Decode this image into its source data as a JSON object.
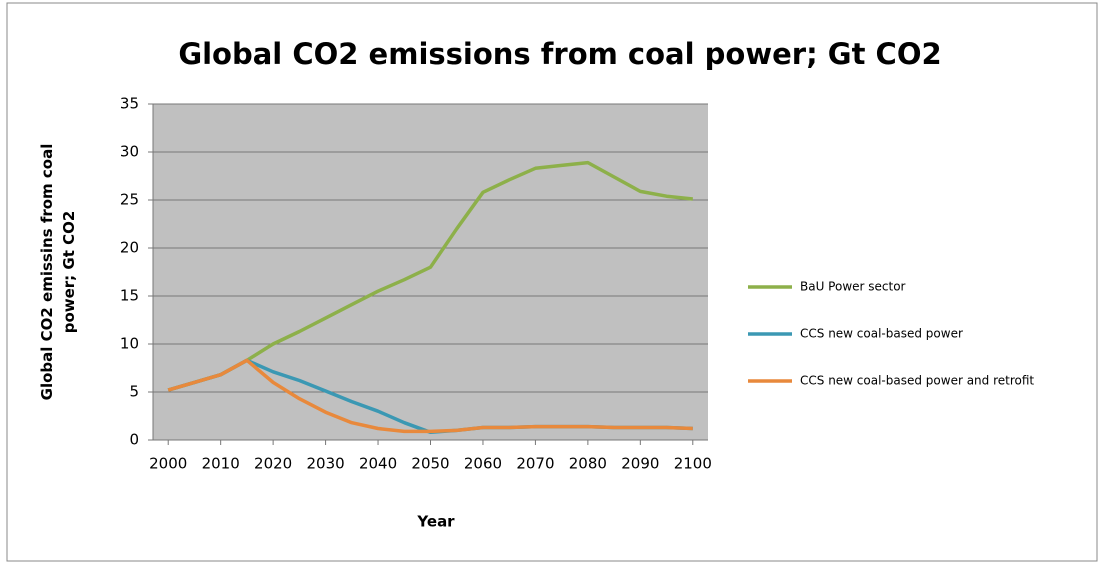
{
  "chart_data": {
    "type": "line",
    "title": "Global CO2 emissions from coal power; Gt CO2",
    "xlabel": "Year",
    "ylabel": "Global CO2 emissins from coal power; Gt CO2",
    "x": [
      2000,
      2005,
      2010,
      2015,
      2020,
      2025,
      2030,
      2035,
      2040,
      2045,
      2050,
      2055,
      2060,
      2065,
      2070,
      2075,
      2080,
      2085,
      2090,
      2095,
      2100
    ],
    "series": [
      {
        "name": "BaU Power sector",
        "color": "#8db04a",
        "values": [
          5.2,
          6.0,
          6.8,
          8.3,
          10.0,
          11.3,
          12.7,
          14.1,
          15.5,
          16.7,
          18.0,
          22.0,
          25.8,
          27.1,
          28.3,
          28.6,
          28.9,
          27.4,
          25.9,
          25.4,
          25.1
        ]
      },
      {
        "name": "CCS new coal-based power",
        "color": "#3b98b3",
        "values": [
          5.2,
          6.0,
          6.8,
          8.3,
          7.1,
          6.2,
          5.1,
          4.0,
          3.0,
          1.8,
          0.8,
          1.0,
          1.3,
          1.3,
          1.4,
          1.4,
          1.4,
          1.3,
          1.3,
          1.3,
          1.2
        ]
      },
      {
        "name": "CCS new coal-based power and retrofit",
        "color": "#e8893c",
        "values": [
          5.2,
          6.0,
          6.8,
          8.3,
          6.0,
          4.3,
          2.9,
          1.8,
          1.2,
          0.9,
          0.9,
          1.0,
          1.3,
          1.3,
          1.4,
          1.4,
          1.4,
          1.3,
          1.3,
          1.3,
          1.2
        ]
      }
    ],
    "xlim": [
      1997.1,
      2102.9
    ],
    "xticks": [
      2000,
      2010,
      2020,
      2030,
      2040,
      2050,
      2060,
      2070,
      2080,
      2090,
      2100
    ],
    "ylim": [
      0,
      35
    ],
    "yticks": [
      0,
      5,
      10,
      15,
      20,
      25,
      30,
      35
    ],
    "grid": true,
    "legend": "right"
  }
}
